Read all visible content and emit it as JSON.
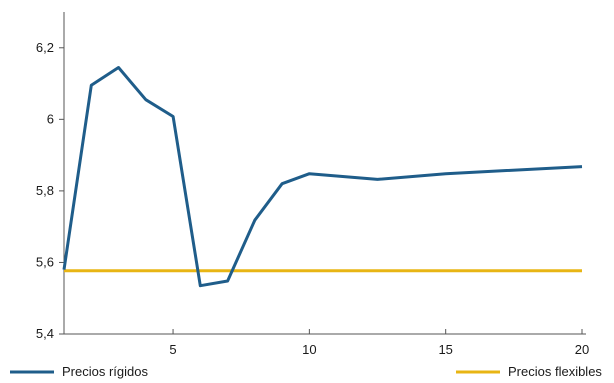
{
  "chart_data": {
    "type": "line",
    "title": "",
    "xlabel": "",
    "ylabel": "",
    "xlim": [
      1,
      20
    ],
    "ylim": [
      5.4,
      6.3
    ],
    "xticks": [
      5,
      10,
      15,
      20
    ],
    "xtick_labels": [
      "5",
      "10",
      "15",
      "20"
    ],
    "yticks": [
      5.4,
      5.6,
      5.8,
      6.0,
      6.2
    ],
    "ytick_labels": [
      "5,4",
      "5,6",
      "5,8",
      "6",
      "6,2"
    ],
    "grid": false,
    "legend_placement": "bottom",
    "series": [
      {
        "name": "Precios rígidos",
        "color": "#1f5d8a",
        "x": [
          1,
          2,
          3,
          4,
          5,
          6,
          7,
          8,
          9,
          10,
          12.5,
          15,
          20
        ],
        "y": [
          5.58,
          6.095,
          6.145,
          6.055,
          6.008,
          5.535,
          5.548,
          5.718,
          5.82,
          5.848,
          5.832,
          5.848,
          5.868
        ]
      },
      {
        "name": "Precios flexibles",
        "color": "#e8b514",
        "x": [
          1,
          20
        ],
        "y": [
          5.577,
          5.577
        ]
      }
    ]
  }
}
